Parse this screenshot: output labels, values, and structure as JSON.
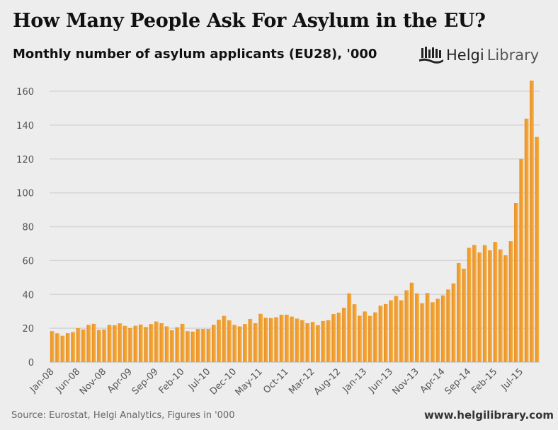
{
  "header": {
    "title": "How Many People Ask For Asylum in the EU?",
    "subtitle": "Monthly number of asylum applicants (EU28), '000",
    "logo_text_a": "Helgi",
    "logo_text_b": "Library"
  },
  "footer": {
    "source": "Source: Eurostat, Helgi Analytics, Figures in '000",
    "site": "www.helgilibrary.com"
  },
  "colors": {
    "bar": "#f0a030",
    "bar_dark": "#e58c22",
    "grid": "#d6d6d6"
  },
  "chart_data": {
    "type": "bar",
    "title": "How Many People Ask For Asylum in the EU?",
    "ylabel": "",
    "xlabel": "",
    "ylim": [
      0,
      170
    ],
    "yticks": [
      0,
      20,
      40,
      60,
      80,
      100,
      120,
      140,
      160
    ],
    "grid": true,
    "start": "Jan-08",
    "xtick_every": 5,
    "xticks": [
      "Jan-08",
      "Jun-08",
      "Nov-08",
      "Apr-09",
      "Sep-09",
      "Feb-10",
      "Jul-10",
      "Dec-10",
      "May-11",
      "Oct-11",
      "Mar-12",
      "Aug-12",
      "Jan-13",
      "Jun-13",
      "Nov-13",
      "Apr-14",
      "Sep-14",
      "Feb-15",
      "Jul-15"
    ],
    "values": [
      18.3,
      17,
      15.6,
      17.1,
      17.7,
      20.1,
      19.3,
      22,
      22.6,
      19,
      19.3,
      22,
      21.8,
      22.9,
      21.4,
      20.1,
      21.5,
      22.2,
      20.7,
      22.5,
      24,
      23,
      21.1,
      18.8,
      20.6,
      22.6,
      18.3,
      18,
      19.6,
      19.6,
      19.6,
      22,
      25,
      27.3,
      24.7,
      22,
      21.1,
      22.5,
      25.5,
      23,
      28.5,
      26.2,
      26,
      26.5,
      28,
      28,
      26.9,
      25.7,
      24.8,
      23,
      23.7,
      21.8,
      24.3,
      24.8,
      28.4,
      29.2,
      32.1,
      40.6,
      34.2,
      27.4,
      29.9,
      27.3,
      29.4,
      33.3,
      34.3,
      36.5,
      39.1,
      36.5,
      42.4,
      46.9,
      40.6,
      34.8,
      40.8,
      35.4,
      37.4,
      39.4,
      42.9,
      46.5,
      58.5,
      55.2,
      67.5,
      69.2,
      64.8,
      69.1,
      66,
      71,
      66.6,
      63.1,
      71.4,
      94,
      120,
      143.8,
      166.3,
      133
    ]
  }
}
